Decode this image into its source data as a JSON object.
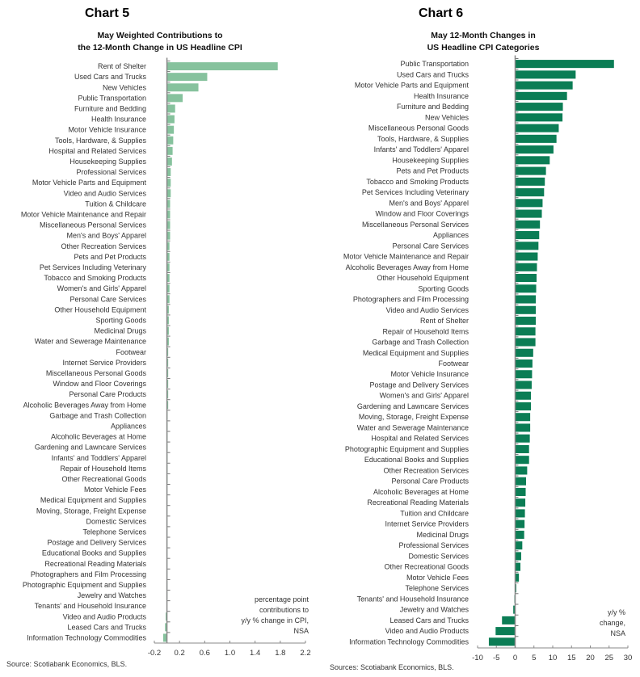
{
  "chart_data": [
    {
      "type": "bar",
      "orientation": "horizontal",
      "chart_label": "Chart 5",
      "title": "May Weighted Contributions to the 12-Month Change in US Headline CPI",
      "title_lines": [
        "May Weighted Contributions to",
        "the 12-Month Change in US Headline CPI"
      ],
      "annotation": [
        "percentage point",
        "contributions to",
        "y/y % change in CPI,",
        "NSA"
      ],
      "source": "Source: Scotiabank Economics, BLS.",
      "xlim": [
        -0.2,
        2.2
      ],
      "xticks": [
        "-0.2",
        "0.2",
        "0.6",
        "1.0",
        "1.4",
        "1.8",
        "2.2"
      ],
      "bar_color": "#86c29d",
      "grid": false,
      "categories": [
        "Rent of Shelter",
        "Used Cars and Trucks",
        "New Vehicles",
        "Public Transportation",
        "Furniture and Bedding",
        "Health Insurance",
        "Motor Vehicle Insurance",
        "Tools, Hardware, & Supplies",
        "Hospital and Related Services",
        "Housekeeping Supplies",
        "Professional Services",
        "Motor Vehicle Parts and Equipment",
        "Video and Audio Services",
        "Tuition & Childcare",
        "Motor Vehicle Maintenance and Repair",
        "Miscellaneous Personal Services",
        "Men's and Boys' Apparel",
        "Other Recreation Services",
        "Pets and Pet Products",
        "Pet Services Including Veterinary",
        "Tobacco and Smoking Products",
        "Women's and Girls' Apparel",
        "Personal Care Services",
        "Other Household Equipment",
        "Sporting Goods",
        "Medicinal Drugs",
        "Water and Sewerage Maintenance",
        "Footwear",
        "Internet Service Providers",
        "Miscellaneous Personal Goods",
        "Window and Floor Coverings",
        "Personal Care Products",
        "Alcoholic Beverages Away from Home",
        "Garbage and Trash Collection",
        "Appliances",
        "Alcoholic Beverages at Home",
        "Gardening and Lawncare Services",
        "Infants' and Toddlers' Apparel",
        "Repair of Household Items",
        "Other Recreational Goods",
        "Motor Vehicle Fees",
        "Medical Equipment and Supplies",
        "Moving, Storage, Freight Expense",
        "Domestic Services",
        "Telephone Services",
        "Postage and Delivery Services",
        "Educational Books and Supplies",
        "Recreational Reading Materials",
        "Photographers and Film Processing",
        "Photographic Equipment and Supplies",
        "Jewelry and Watches",
        "Tenants' and Household Insurance",
        "Video and Audio Products",
        "Leased Cars and Trucks",
        "Information Technology Commodities"
      ],
      "values": [
        1.76,
        0.64,
        0.5,
        0.25,
        0.13,
        0.12,
        0.11,
        0.1,
        0.09,
        0.08,
        0.06,
        0.06,
        0.06,
        0.05,
        0.05,
        0.05,
        0.05,
        0.04,
        0.04,
        0.04,
        0.04,
        0.04,
        0.04,
        0.03,
        0.03,
        0.03,
        0.03,
        0.02,
        0.02,
        0.02,
        0.02,
        0.02,
        0.02,
        0.01,
        0.01,
        0.01,
        0.01,
        0.01,
        0.01,
        0.01,
        0.005,
        0.005,
        0.004,
        0.004,
        0.003,
        0.003,
        0.002,
        0.002,
        0.001,
        0.001,
        0.0,
        -0.002,
        -0.02,
        -0.03,
        -0.06
      ]
    },
    {
      "type": "bar",
      "orientation": "horizontal",
      "chart_label": "Chart 6",
      "title": "May 12-Month Changes in US Headline CPI Categories",
      "title_lines": [
        "May 12-Month Changes in",
        "US Headline CPI Categories"
      ],
      "annotation": [
        "y/y %",
        "change,",
        "NSA"
      ],
      "source": "Sources: Scotiabank Economics, BLS.",
      "xlim": [
        -10,
        30
      ],
      "xticks": [
        "-10",
        "-5",
        "0",
        "5",
        "10",
        "15",
        "20",
        "25",
        "30"
      ],
      "bar_color": "#0b7d55",
      "grid": false,
      "categories": [
        "Public Transportation",
        "Used Cars and Trucks",
        "Motor Vehicle Parts and Equipment",
        "Health Insurance",
        "Furniture and Bedding",
        "New Vehicles",
        "Miscellaneous Personal Goods",
        "Tools, Hardware, & Supplies",
        "Infants' and Toddlers' Apparel",
        "Housekeeping Supplies",
        "Pets and Pet Products",
        "Tobacco and Smoking Products",
        "Pet Services Including Veterinary",
        "Men's and Boys' Apparel",
        "Window and Floor Coverings",
        "Miscellaneous Personal Services",
        "Appliances",
        "Personal Care Services",
        "Motor Vehicle Maintenance and Repair",
        "Alcoholic Beverages Away from Home",
        "Other Household Equipment",
        "Sporting Goods",
        "Photographers and Film Processing",
        "Video and Audio Services",
        "Rent of Shelter",
        "Repair of Household Items",
        "Garbage and Trash Collection",
        "Medical Equipment and Supplies",
        "Footwear",
        "Motor Vehicle Insurance",
        "Postage and Delivery Services",
        "Women's and Girls' Apparel",
        "Gardening and Lawncare Services",
        "Moving, Storage, Freight Expense",
        "Water and Sewerage Maintenance",
        "Hospital and Related Services",
        "Photographic Equipment and Supplies",
        "Educational Books and Supplies",
        "Other Recreation Services",
        "Personal Care Products",
        "Alcoholic Beverages at Home",
        "Recreational Reading Materials",
        "Tuition and Childcare",
        "Internet Service Providers",
        "Medicinal Drugs",
        "Professional Services",
        "Domestic Services",
        "Other Recreational Goods",
        "Motor Vehicle Fees",
        "Telephone Services",
        "Tenants' and Household Insurance",
        "Jewelry and Watches",
        "Leased Cars and Trucks",
        "Video and Audio Products",
        "Information Technology Commodities"
      ],
      "values": [
        26.3,
        16.1,
        15.3,
        13.8,
        12.7,
        12.6,
        11.6,
        11.0,
        10.2,
        9.2,
        8.2,
        7.9,
        7.7,
        7.3,
        7.1,
        6.6,
        6.4,
        6.2,
        6.0,
        5.8,
        5.7,
        5.6,
        5.5,
        5.5,
        5.5,
        5.4,
        5.4,
        4.8,
        4.6,
        4.5,
        4.4,
        4.2,
        4.2,
        4.0,
        4.0,
        3.9,
        3.7,
        3.7,
        3.2,
        2.9,
        2.8,
        2.7,
        2.6,
        2.5,
        2.4,
        1.9,
        1.6,
        1.4,
        1.0,
        0.3,
        -0.2,
        -0.5,
        -3.5,
        -5.2,
        -7.0
      ]
    }
  ]
}
